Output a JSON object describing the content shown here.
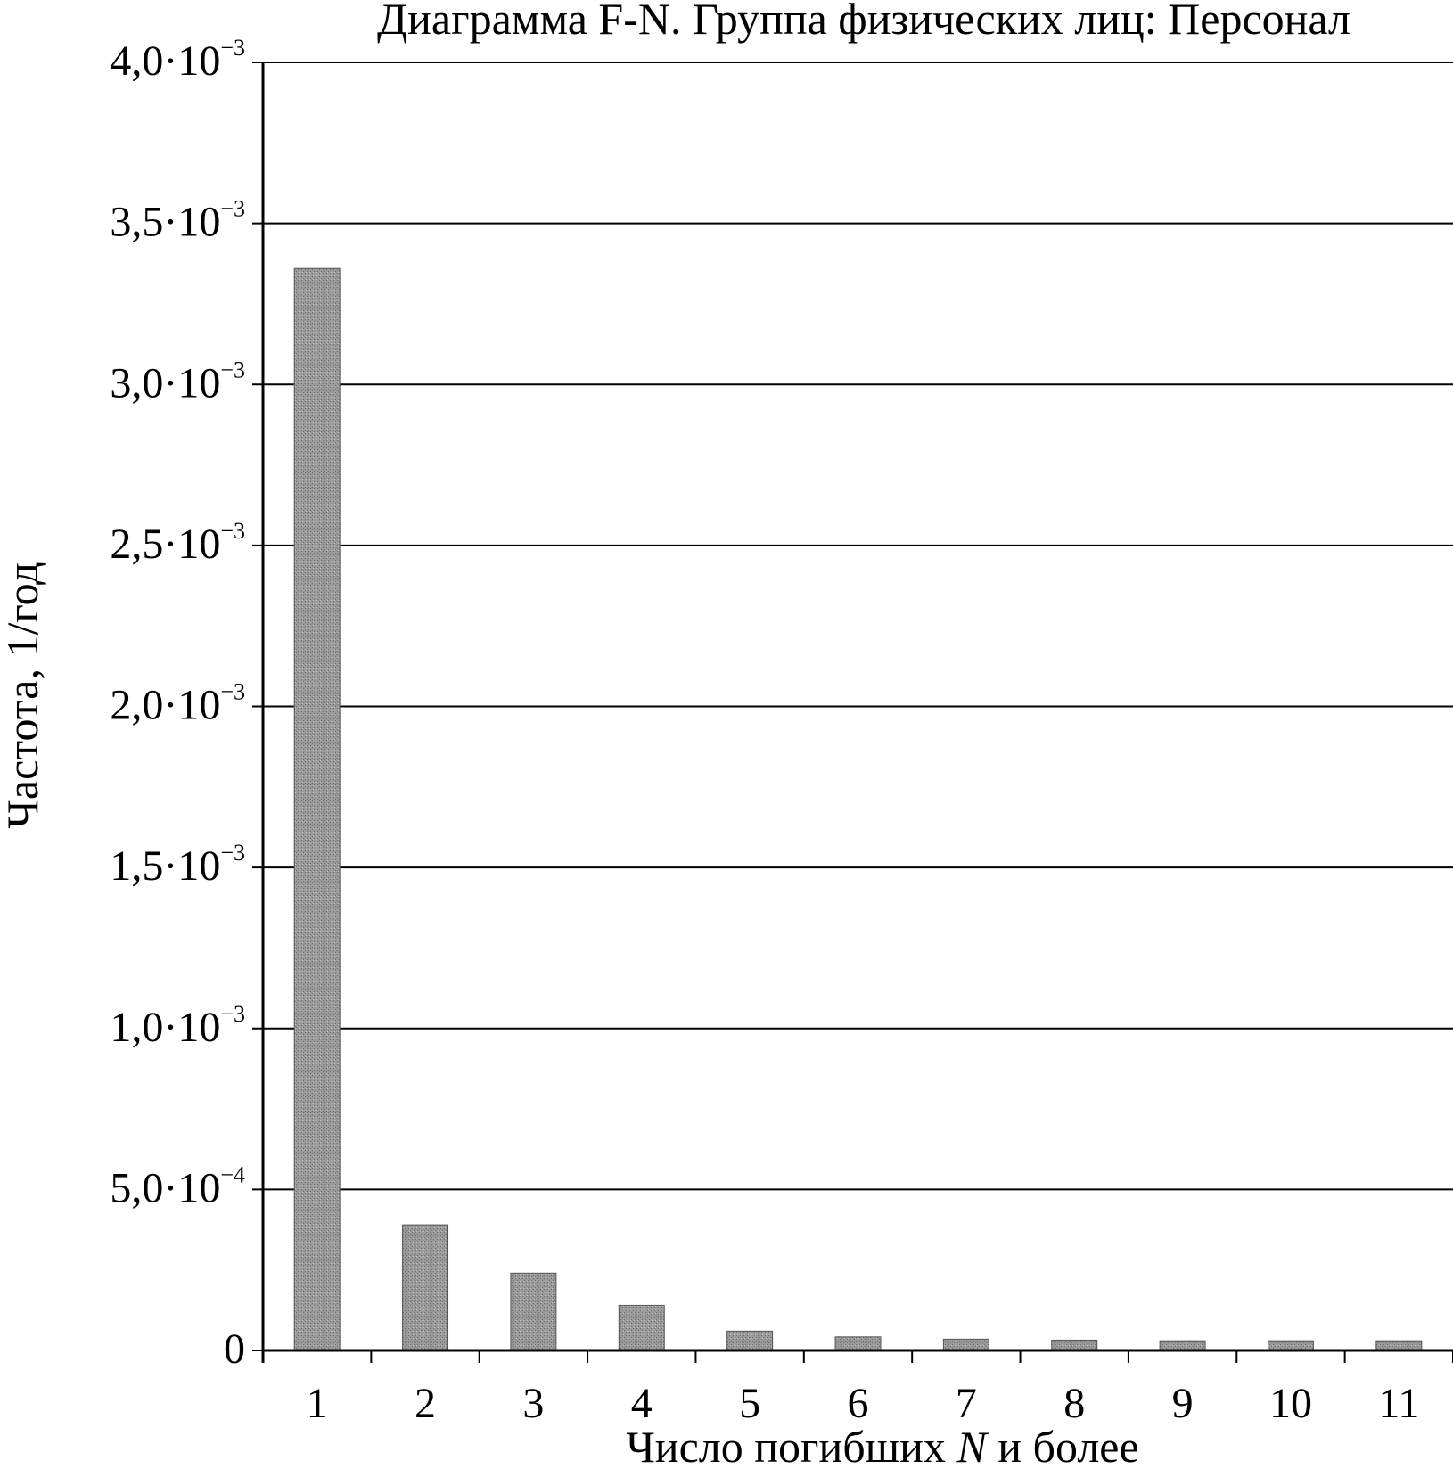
{
  "chart_data": {
    "type": "bar",
    "title": "Диаграмма F-N. Группа физических лиц: Персонал",
    "xlabel_parts": [
      "Число погибших ",
      "N",
      " и более"
    ],
    "ylabel": "Частота, 1/год",
    "categories": [
      "1",
      "2",
      "3",
      "4",
      "5",
      "6",
      "7",
      "8",
      "9",
      "10",
      "11"
    ],
    "values": [
      0.00336,
      0.00039,
      0.00024,
      0.00014,
      6e-05,
      4.2e-05,
      3.5e-05,
      3.2e-05,
      3e-05,
      3e-05,
      3e-05
    ],
    "ylim": [
      0,
      0.004
    ],
    "yticks": [
      {
        "value": 0,
        "mantissa": "0",
        "exp": ""
      },
      {
        "value": 0.0005,
        "mantissa": "5,0·10",
        "exp": "−4"
      },
      {
        "value": 0.001,
        "mantissa": "1,0·10",
        "exp": "−3"
      },
      {
        "value": 0.0015,
        "mantissa": "1,5·10",
        "exp": "−3"
      },
      {
        "value": 0.002,
        "mantissa": "2,0·10",
        "exp": "−3"
      },
      {
        "value": 0.0025,
        "mantissa": "2,5·10",
        "exp": "−3"
      },
      {
        "value": 0.003,
        "mantissa": "3,0·10",
        "exp": "−3"
      },
      {
        "value": 0.0035,
        "mantissa": "3,5·10",
        "exp": "−3"
      },
      {
        "value": 0.004,
        "mantissa": "4,0·10",
        "exp": "−3"
      }
    ],
    "grid": true,
    "bar_color": "#8a8a8a"
  }
}
